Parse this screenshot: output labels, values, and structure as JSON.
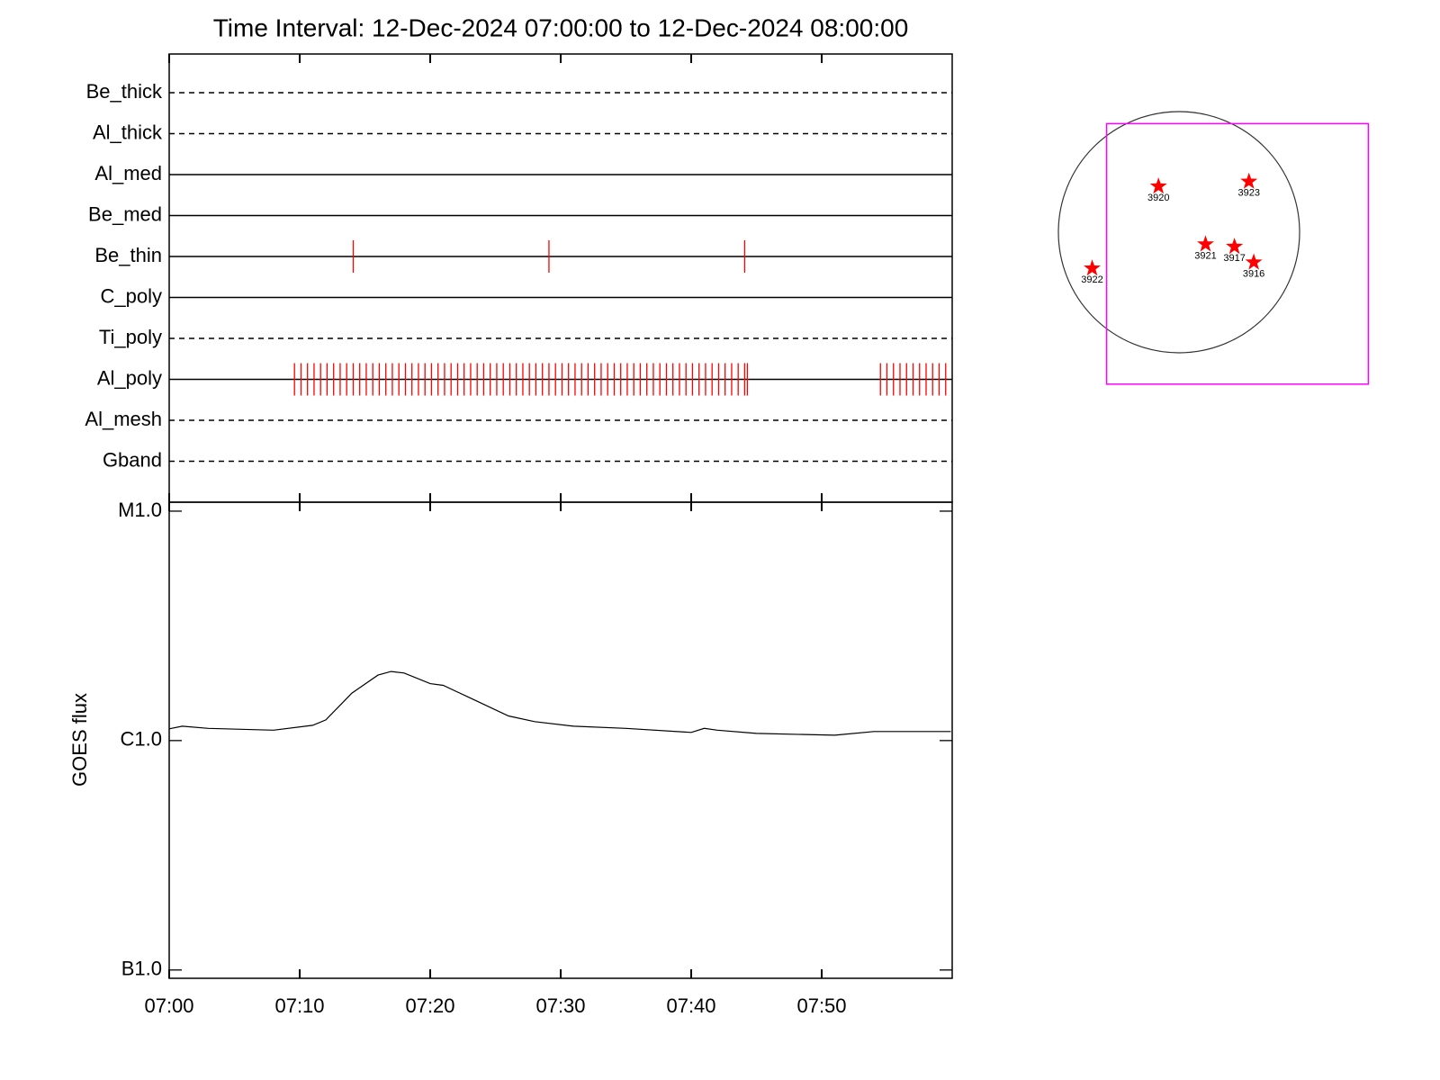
{
  "chart_data": [
    {
      "type": "timeline",
      "title": "Time Interval: 12-Dec-2024 07:00:00 to 12-Dec-2024 08:00:00",
      "xlim": [
        0,
        60
      ],
      "exposure_color": "#ff0000",
      "filters": [
        {
          "name": "Be_thick",
          "style": "dashed",
          "exposures": []
        },
        {
          "name": "Al_thick",
          "style": "dashed",
          "exposures": []
        },
        {
          "name": "Al_med",
          "style": "solid",
          "exposures": []
        },
        {
          "name": "Be_med",
          "style": "solid",
          "exposures": []
        },
        {
          "name": "Be_thin",
          "style": "solid",
          "exposures": [
            14.1,
            29.1,
            44.1
          ]
        },
        {
          "name": "C_poly",
          "style": "solid",
          "exposures": []
        },
        {
          "name": "Ti_poly",
          "style": "dashed",
          "exposures": []
        },
        {
          "name": "Al_poly",
          "style": "solid",
          "exposures": [
            9.6,
            10.1,
            10.6,
            11.1,
            11.6,
            12.1,
            12.6,
            13.1,
            13.6,
            14.1,
            14.6,
            15.1,
            15.6,
            16.1,
            16.6,
            17.1,
            17.6,
            18.1,
            18.6,
            19.1,
            19.6,
            20.1,
            20.6,
            21.1,
            21.6,
            22.1,
            22.6,
            23.1,
            23.6,
            24.1,
            24.6,
            25.1,
            25.6,
            26.1,
            26.6,
            27.1,
            27.6,
            28.1,
            28.6,
            29.1,
            29.6,
            30.1,
            30.6,
            31.1,
            31.6,
            32.1,
            32.6,
            33.1,
            33.6,
            34.1,
            34.6,
            35.1,
            35.6,
            36.1,
            36.6,
            37.1,
            37.6,
            38.1,
            38.6,
            39.1,
            39.6,
            40.1,
            40.6,
            41.1,
            41.6,
            42.1,
            42.6,
            43.1,
            43.6,
            44.1,
            44.3,
            54.5,
            55.0,
            55.5,
            56.0,
            56.5,
            57.0,
            57.5,
            58.0,
            58.5,
            59.0,
            59.5
          ]
        },
        {
          "name": "Al_mesh",
          "style": "dashed",
          "exposures": []
        },
        {
          "name": "Gband",
          "style": "dashed",
          "exposures": []
        }
      ]
    },
    {
      "type": "line",
      "ylabel": "GOES flux",
      "log": true,
      "color": "#000000",
      "xlim": [
        0,
        60
      ],
      "xticks": [
        {
          "value": 0,
          "label": "07:00"
        },
        {
          "value": 10,
          "label": "07:10"
        },
        {
          "value": 20,
          "label": "07:20"
        },
        {
          "value": 30,
          "label": "07:30"
        },
        {
          "value": 40,
          "label": "07:40"
        },
        {
          "value": 50,
          "label": "07:50"
        }
      ],
      "ylim": [
        9.2e-08,
        1.094e-05
      ],
      "yticks": [
        {
          "value": 1e-07,
          "label": "B1.0"
        },
        {
          "value": 1e-06,
          "label": "C1.0"
        },
        {
          "value": 1e-05,
          "label": "M1.0"
        }
      ],
      "x": [
        0,
        1,
        3,
        8,
        11,
        12,
        14,
        16,
        17,
        18,
        20,
        21,
        23,
        26,
        28,
        31,
        35,
        40,
        41,
        42,
        45,
        51,
        54,
        59.9
      ],
      "values": [
        1.125e-06,
        1.155e-06,
        1.13e-06,
        1.11e-06,
        1.166e-06,
        1.23e-06,
        1.61e-06,
        1.93e-06,
        2e-06,
        1.97e-06,
        1.77e-06,
        1.74e-06,
        1.54e-06,
        1.28e-06,
        1.21e-06,
        1.155e-06,
        1.13e-06,
        1.085e-06,
        1.13e-06,
        1.11e-06,
        1.075e-06,
        1.055e-06,
        1.095e-06,
        1.095e-06
      ]
    },
    {
      "type": "disk",
      "color": "#ff0000",
      "fov_color": "#ff00ff",
      "xlim": [
        -1,
        1
      ],
      "ylim": [
        -1,
        1
      ],
      "fov": {
        "x": [
          -0.6,
          1.57
        ],
        "y": [
          -1.26,
          0.9
        ]
      },
      "regions": [
        {
          "label": "3920",
          "x": -0.17,
          "y": 0.38
        },
        {
          "label": "3923",
          "x": 0.58,
          "y": 0.42
        },
        {
          "label": "3921",
          "x": 0.22,
          "y": -0.1
        },
        {
          "label": "3917",
          "x": 0.46,
          "y": -0.12
        },
        {
          "label": "3916",
          "x": 0.62,
          "y": -0.25
        },
        {
          "label": "3922",
          "x": -0.72,
          "y": -0.3
        }
      ]
    }
  ]
}
